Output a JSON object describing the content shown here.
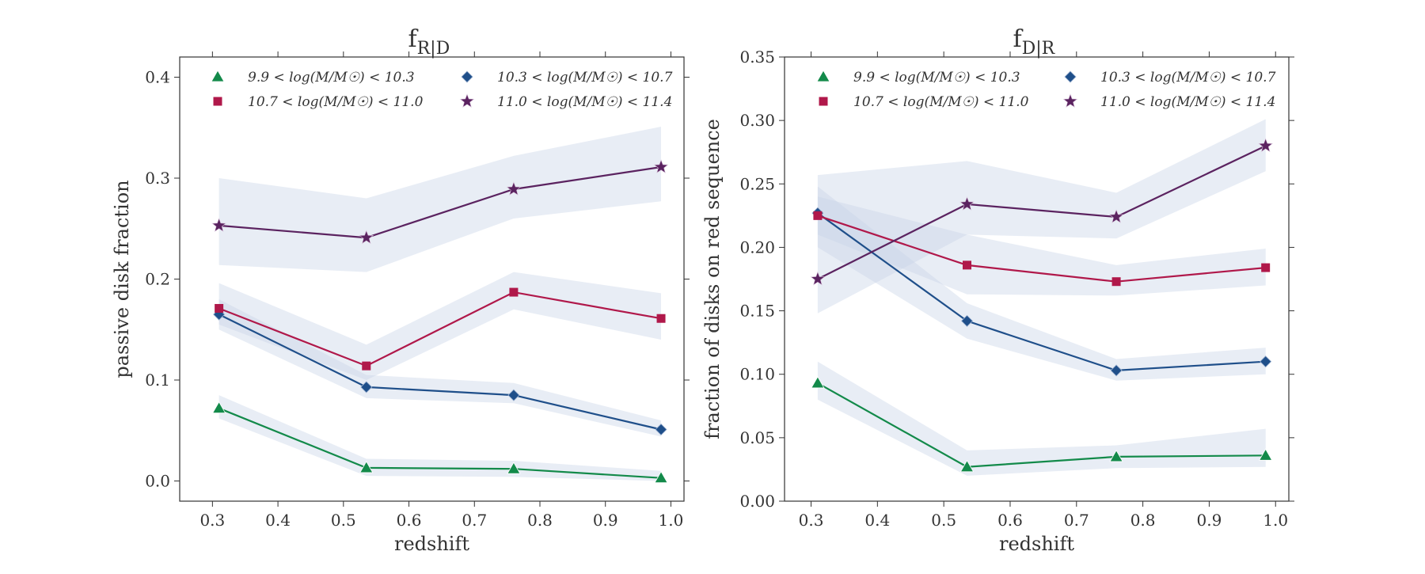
{
  "chart_data": [
    {
      "type": "line",
      "title_main": "f",
      "title_sub": "R|D",
      "xlabel": "redshift",
      "ylabel": "passive disk fraction",
      "xlim": [
        0.25,
        1.02
      ],
      "ylim": [
        -0.02,
        0.42
      ],
      "xticks": [
        0.3,
        0.4,
        0.5,
        0.6,
        0.7,
        0.8,
        0.9,
        1.0
      ],
      "xtick_labels": [
        "0.3",
        "0.4",
        "0.5",
        "0.6",
        "0.7",
        "0.8",
        "0.9",
        "1.0"
      ],
      "yticks": [
        0.0,
        0.1,
        0.2,
        0.3,
        0.4
      ],
      "ytick_labels": [
        "0.0",
        "0.1",
        "0.2",
        "0.3",
        "0.4"
      ],
      "grid": false,
      "legend_position": "top",
      "x": [
        0.31,
        0.535,
        0.76,
        0.985
      ],
      "series": [
        {
          "name": "9.9 < log(M/M☉) < 10.3",
          "values": [
            0.072,
            0.013,
            0.012,
            0.003
          ],
          "lower": [
            0.062,
            0.005,
            0.004,
            0.0
          ],
          "upper": [
            0.085,
            0.022,
            0.02,
            0.01
          ],
          "marker": "triangle",
          "color": "#138a4a"
        },
        {
          "name": "10.3 < log(M/M☉) < 10.7",
          "values": [
            0.165,
            0.093,
            0.085,
            0.051
          ],
          "lower": [
            0.15,
            0.082,
            0.077,
            0.044
          ],
          "upper": [
            0.18,
            0.105,
            0.097,
            0.06
          ],
          "marker": "diamond",
          "color": "#1f4f8a"
        },
        {
          "name": "10.7 < log(M/M☉) < 11.0",
          "values": [
            0.171,
            0.114,
            0.187,
            0.161
          ],
          "lower": [
            0.155,
            0.1,
            0.17,
            0.14
          ],
          "upper": [
            0.196,
            0.135,
            0.207,
            0.186
          ],
          "marker": "square",
          "color": "#b0184a"
        },
        {
          "name": "11.0 < log(M/M☉) < 11.4",
          "values": [
            0.253,
            0.241,
            0.289,
            0.311
          ],
          "lower": [
            0.214,
            0.207,
            0.26,
            0.277
          ],
          "upper": [
            0.3,
            0.28,
            0.322,
            0.351
          ],
          "marker": "star",
          "color": "#5b2360"
        }
      ]
    },
    {
      "type": "line",
      "title_main": "f",
      "title_sub": "D|R",
      "xlabel": "redshift",
      "ylabel": "fraction of disks on red sequence",
      "xlim": [
        0.26,
        1.02
      ],
      "ylim": [
        0.0,
        0.35
      ],
      "xticks": [
        0.3,
        0.4,
        0.5,
        0.6,
        0.7,
        0.8,
        0.9,
        1.0
      ],
      "xtick_labels": [
        "0.3",
        "0.4",
        "0.5",
        "0.6",
        "0.7",
        "0.8",
        "0.9",
        "1.0"
      ],
      "yticks": [
        0.0,
        0.05,
        0.1,
        0.15,
        0.2,
        0.25,
        0.3,
        0.35
      ],
      "ytick_labels": [
        "0.00",
        "0.05",
        "0.10",
        "0.15",
        "0.20",
        "0.25",
        "0.30",
        "0.35"
      ],
      "grid": false,
      "legend_position": "top",
      "x": [
        0.31,
        0.535,
        0.76,
        0.985
      ],
      "series": [
        {
          "name": "9.9 < log(M/M☉) < 10.3",
          "values": [
            0.093,
            0.027,
            0.035,
            0.036
          ],
          "lower": [
            0.08,
            0.02,
            0.026,
            0.027
          ],
          "upper": [
            0.11,
            0.04,
            0.044,
            0.057
          ],
          "marker": "triangle",
          "color": "#138a4a"
        },
        {
          "name": "10.3 < log(M/M☉) < 10.7",
          "values": [
            0.227,
            0.142,
            0.103,
            0.11
          ],
          "lower": [
            0.2,
            0.128,
            0.095,
            0.1
          ],
          "upper": [
            0.248,
            0.156,
            0.112,
            0.121
          ],
          "marker": "diamond",
          "color": "#1f4f8a"
        },
        {
          "name": "10.7 < log(M/M☉) < 11.0",
          "values": [
            0.225,
            0.186,
            0.173,
            0.184
          ],
          "lower": [
            0.21,
            0.163,
            0.162,
            0.17
          ],
          "upper": [
            0.24,
            0.21,
            0.186,
            0.199
          ],
          "marker": "square",
          "color": "#b0184a"
        },
        {
          "name": "11.0 < log(M/M☉) < 11.4",
          "values": [
            0.175,
            0.234,
            0.224,
            0.28
          ],
          "lower": [
            0.148,
            0.21,
            0.207,
            0.26
          ],
          "upper": [
            0.257,
            0.268,
            0.243,
            0.301
          ],
          "marker": "star",
          "color": "#5b2360"
        }
      ]
    }
  ],
  "band_color": "#c7d3e8"
}
